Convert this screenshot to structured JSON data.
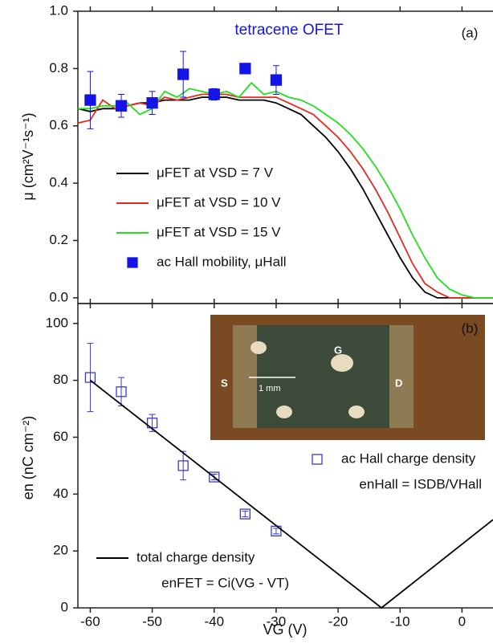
{
  "chart_data": [
    {
      "type": "line",
      "title": "tetracene OFET",
      "panel_label": "(a)",
      "ylabel": "μ  (cm²V⁻¹s⁻¹)",
      "xlim": [
        -62,
        5
      ],
      "xticks": [
        -60,
        -50,
        -40,
        -30,
        -20,
        -10,
        0
      ],
      "ylim": [
        -0.02,
        1.0
      ],
      "yticks": [
        {
          "value": 0,
          "label": "0.0"
        },
        {
          "value": 0.2,
          "label": "0.2"
        },
        {
          "value": 0.4,
          "label": "0.4"
        },
        {
          "value": 0.6,
          "label": "0.6"
        },
        {
          "value": 0.8,
          "label": "0.8"
        },
        {
          "value": 1.0,
          "label": "1.0"
        }
      ],
      "series": [
        {
          "name": "μFET at VSD = 7 V",
          "color": "#000000",
          "x": [
            -62,
            -60,
            -58,
            -56,
            -54,
            -52,
            -50,
            -48,
            -46,
            -44,
            -42,
            -40,
            -38,
            -36,
            -34,
            -32,
            -30,
            -28,
            -26,
            -24,
            -22,
            -20,
            -18,
            -16,
            -14,
            -12,
            -10,
            -8,
            -6,
            -4,
            -2,
            0,
            2,
            4,
            5
          ],
          "values": [
            0.66,
            0.65,
            0.66,
            0.66,
            0.67,
            0.68,
            0.68,
            0.69,
            0.69,
            0.69,
            0.7,
            0.7,
            0.7,
            0.69,
            0.69,
            0.69,
            0.68,
            0.66,
            0.64,
            0.6,
            0.56,
            0.51,
            0.45,
            0.38,
            0.3,
            0.22,
            0.14,
            0.07,
            0.02,
            0.0,
            0,
            0,
            0,
            0,
            0
          ]
        },
        {
          "name": "μFET at VSD = 10 V",
          "color": "#e8281e",
          "x": [
            -62,
            -60,
            -58,
            -56,
            -54,
            -52,
            -50,
            -48,
            -46,
            -44,
            -42,
            -40,
            -38,
            -36,
            -34,
            -32,
            -30,
            -28,
            -26,
            -24,
            -22,
            -20,
            -18,
            -16,
            -14,
            -12,
            -10,
            -8,
            -6,
            -4,
            -2,
            0,
            2,
            4,
            5
          ],
          "values": [
            0.61,
            0.62,
            0.69,
            0.66,
            0.67,
            0.68,
            0.67,
            0.7,
            0.69,
            0.7,
            0.71,
            0.71,
            0.71,
            0.7,
            0.7,
            0.7,
            0.7,
            0.68,
            0.66,
            0.64,
            0.6,
            0.56,
            0.51,
            0.45,
            0.38,
            0.3,
            0.21,
            0.12,
            0.05,
            0.02,
            0.0,
            0,
            0,
            0,
            0
          ]
        },
        {
          "name": "μFET at VSD = 15 V",
          "color": "#22e01e",
          "x": [
            -62,
            -60,
            -58,
            -56,
            -54,
            -52,
            -50,
            -48,
            -46,
            -44,
            -42,
            -40,
            -38,
            -36,
            -34,
            -32,
            -30,
            -28,
            -26,
            -24,
            -22,
            -20,
            -18,
            -16,
            -14,
            -12,
            -10,
            -8,
            -6,
            -4,
            -2,
            0,
            2,
            4,
            5
          ],
          "values": [
            0.66,
            0.66,
            0.67,
            0.67,
            0.68,
            0.64,
            0.66,
            0.72,
            0.7,
            0.73,
            0.72,
            0.71,
            0.72,
            0.7,
            0.75,
            0.71,
            0.72,
            0.7,
            0.69,
            0.67,
            0.64,
            0.61,
            0.57,
            0.52,
            0.46,
            0.39,
            0.31,
            0.22,
            0.14,
            0.07,
            0.03,
            0.01,
            0,
            0,
            0
          ]
        },
        {
          "name": "ac Hall mobility, μHall",
          "color": "#1414e6",
          "marker": "filled-square",
          "x": [
            -60,
            -55,
            -50,
            -45,
            -40,
            -35,
            -30
          ],
          "values": [
            0.69,
            0.67,
            0.68,
            0.78,
            0.71,
            0.8,
            0.76
          ],
          "errors": [
            0.1,
            0.04,
            0.04,
            0.08,
            0.02,
            0,
            0.05
          ]
        }
      ]
    },
    {
      "type": "line",
      "panel_label": "(b)",
      "xlabel": "VG  (V)",
      "ylabel": "en  (nC cm⁻²)",
      "xlim": [
        -62,
        5
      ],
      "xticks": [
        -60,
        -50,
        -40,
        -30,
        -20,
        -10,
        0
      ],
      "ylim": [
        0,
        107
      ],
      "yticks": [
        0,
        20,
        40,
        60,
        80,
        100
      ],
      "series": [
        {
          "name": "ac Hall charge density",
          "color": "#3a3acc",
          "marker": "open-square",
          "x": [
            -60,
            -55,
            -50,
            -45,
            -40,
            -35,
            -30
          ],
          "values": [
            81,
            76,
            65,
            50,
            46,
            33,
            27
          ],
          "errors": [
            12,
            5,
            3,
            5,
            1,
            1,
            1
          ]
        },
        {
          "name": "total charge density",
          "color": "#000000",
          "x": [
            -60,
            -13,
            5
          ],
          "values": [
            80,
            0,
            31
          ]
        }
      ],
      "annotations": [
        "enHall = ISDB/VHall",
        "enFET = Ci(VG - VT)"
      ],
      "inset_labels": [
        "S",
        "G",
        "D",
        "1 mm"
      ]
    }
  ]
}
